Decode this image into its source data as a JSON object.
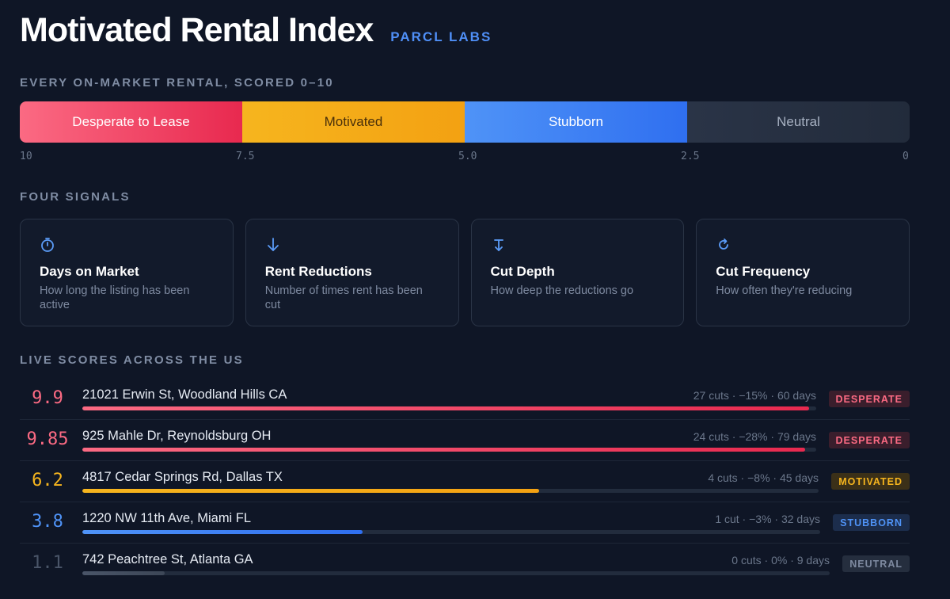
{
  "header": {
    "title": "Motivated Rental Index",
    "brand": "PARCL LABS"
  },
  "scale": {
    "label": "EVERY ON-MARKET RENTAL, SCORED 0–10",
    "segments": [
      "Desperate to Lease",
      "Motivated",
      "Stubborn",
      "Neutral"
    ],
    "ticks": [
      "10",
      "7.5",
      "5.0",
      "2.5",
      "0"
    ]
  },
  "signals": {
    "label": "FOUR SIGNALS",
    "cards": [
      {
        "icon": "stopwatch-icon",
        "title": "Days on Market",
        "desc": "How long the listing has been active"
      },
      {
        "icon": "arrow-down-icon",
        "title": "Rent Reductions",
        "desc": "Number of times rent has been cut"
      },
      {
        "icon": "depth-arrow-icon",
        "title": "Cut Depth",
        "desc": "How deep the reductions go"
      },
      {
        "icon": "refresh-icon",
        "title": "Cut Frequency",
        "desc": "How often they're reducing"
      }
    ]
  },
  "live": {
    "label": "LIVE SCORES ACROSS THE US",
    "rows": [
      {
        "score": "9.9",
        "score_value": 9.9,
        "address": "21021 Erwin St, Woodland Hills CA",
        "meta": "27 cuts · −15% · 60 days",
        "badge": "DESPERATE",
        "category": "desperate",
        "color": "#fb6a83"
      },
      {
        "score": "9.85",
        "score_value": 9.85,
        "address": "925 Mahle Dr, Reynoldsburg OH",
        "meta": "24 cuts · −28% · 79 days",
        "badge": "DESPERATE",
        "category": "desperate",
        "color": "#fb6a83"
      },
      {
        "score": "6.2",
        "score_value": 6.2,
        "address": "4817 Cedar Springs Rd, Dallas TX",
        "meta": "4 cuts · −8% · 45 days",
        "badge": "MOTIVATED",
        "category": "motivated",
        "color": "#f6b51e"
      },
      {
        "score": "3.8",
        "score_value": 3.8,
        "address": "1220 NW 11th Ave, Miami FL",
        "meta": "1 cut · −3% · 32 days",
        "badge": "STUBBORN",
        "category": "stubborn",
        "color": "#4f93f7"
      },
      {
        "score": "1.1",
        "score_value": 1.1,
        "address": "742 Peachtree St, Atlanta GA",
        "meta": "0 cuts · 0% · 9 days",
        "badge": "NEUTRAL",
        "category": "neutral",
        "color": "#4a5568"
      }
    ]
  }
}
